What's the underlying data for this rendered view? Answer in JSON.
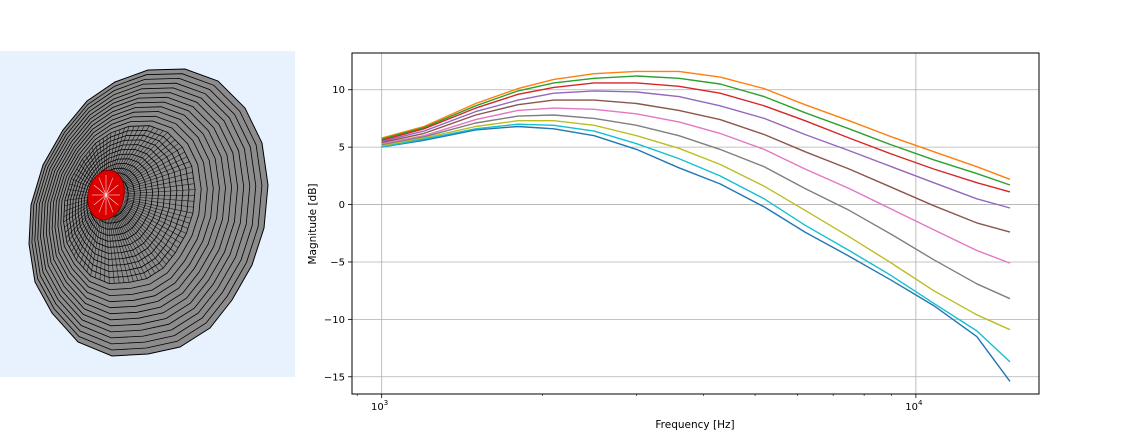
{
  "colors": {
    "mesh_panel_bg": "#e8f2fe",
    "mesh_fill": "#8c8c8c",
    "mesh_line": "#000000",
    "disc_fill": "#dd0000",
    "disc_line": "#ffffff",
    "grid": "#b0b0b0"
  },
  "chart_data": {
    "type": "line",
    "title": "",
    "xlabel": "Frequency [Hz]",
    "ylabel": "Magnitude [dB]",
    "xscale": "log",
    "xlim": [
      880,
      17000
    ],
    "ylim": [
      -16.5,
      13.2
    ],
    "xticks": [
      {
        "value": 1000,
        "mantissa": "10",
        "exponent": "3"
      },
      {
        "value": 10000,
        "mantissa": "10",
        "exponent": "4"
      }
    ],
    "yticks": [
      {
        "value": 10,
        "label": "10"
      },
      {
        "value": 5,
        "label": "5"
      },
      {
        "value": 0,
        "label": "0"
      },
      {
        "value": -5,
        "label": "−5"
      },
      {
        "value": -10,
        "label": "−10"
      },
      {
        "value": -15,
        "label": "−15"
      }
    ],
    "grid": true,
    "legend": "none",
    "x": [
      1000,
      1200,
      1500,
      1800,
      2100,
      2500,
      3000,
      3600,
      4300,
      5200,
      6200,
      7500,
      9000,
      10800,
      13000,
      15000
    ],
    "series": [
      {
        "color": "#1f77b4",
        "values": [
          5.0,
          5.6,
          6.5,
          6.8,
          6.6,
          6.0,
          4.8,
          3.2,
          1.8,
          -0.2,
          -2.4,
          -4.5,
          -6.6,
          -8.8,
          -11.5,
          -15.4
        ]
      },
      {
        "color": "#ff7f0e",
        "values": [
          5.8,
          6.8,
          8.8,
          10.1,
          10.9,
          11.4,
          11.6,
          11.6,
          11.1,
          10.1,
          8.7,
          7.3,
          5.9,
          4.6,
          3.3,
          2.2
        ]
      },
      {
        "color": "#2ca02c",
        "values": [
          5.7,
          6.7,
          8.6,
          9.9,
          10.6,
          11.0,
          11.2,
          11.0,
          10.5,
          9.4,
          8.0,
          6.6,
          5.2,
          3.9,
          2.7,
          1.7
        ]
      },
      {
        "color": "#d62728",
        "values": [
          5.6,
          6.6,
          8.4,
          9.6,
          10.2,
          10.6,
          10.6,
          10.3,
          9.7,
          8.6,
          7.3,
          5.8,
          4.4,
          3.1,
          1.9,
          1.1
        ]
      },
      {
        "color": "#9467bd",
        "values": [
          5.5,
          6.4,
          8.1,
          9.1,
          9.7,
          9.9,
          9.8,
          9.4,
          8.6,
          7.5,
          6.1,
          4.7,
          3.3,
          1.9,
          0.5,
          -0.3
        ]
      },
      {
        "color": "#8c564b",
        "values": [
          5.4,
          6.2,
          7.8,
          8.7,
          9.1,
          9.1,
          8.8,
          8.2,
          7.4,
          6.1,
          4.6,
          3.1,
          1.5,
          -0.1,
          -1.6,
          -2.4
        ]
      },
      {
        "color": "#e377c2",
        "values": [
          5.3,
          6.0,
          7.4,
          8.2,
          8.4,
          8.3,
          7.9,
          7.2,
          6.2,
          4.8,
          3.1,
          1.4,
          -0.4,
          -2.2,
          -4.0,
          -5.1
        ]
      },
      {
        "color": "#7f7f7f",
        "values": [
          5.2,
          5.9,
          7.1,
          7.7,
          7.8,
          7.5,
          6.9,
          6.0,
          4.8,
          3.3,
          1.4,
          -0.5,
          -2.6,
          -4.8,
          -6.9,
          -8.2
        ]
      },
      {
        "color": "#bcbd22",
        "values": [
          5.1,
          5.8,
          6.8,
          7.3,
          7.3,
          6.9,
          6.0,
          4.9,
          3.5,
          1.6,
          -0.5,
          -2.8,
          -5.1,
          -7.5,
          -9.6,
          -10.9
        ]
      },
      {
        "color": "#17becf",
        "values": [
          5.0,
          5.7,
          6.6,
          7.0,
          6.9,
          6.4,
          5.3,
          4.0,
          2.5,
          0.5,
          -1.8,
          -4.0,
          -6.2,
          -8.6,
          -11.0,
          -13.7
        ]
      }
    ]
  }
}
